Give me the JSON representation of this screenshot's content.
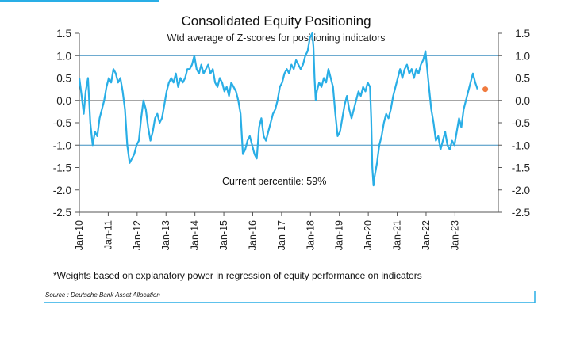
{
  "chart_data": {
    "type": "line",
    "title": "Consolidated Equity Positioning",
    "subtitle": "Wtd average of Z-scores for positioning indicators",
    "ylim": [
      -2.5,
      1.5
    ],
    "yticks": [
      1.5,
      1.0,
      0.5,
      0.0,
      -0.5,
      -1.0,
      -1.5,
      -2.0,
      -2.5
    ],
    "ytick_labels": [
      "1.5",
      "1.0",
      "0.5",
      "0.0",
      "-0.5",
      "-1.0",
      "-1.5",
      "-2.0",
      "-2.5"
    ],
    "xlim": [
      2010.0,
      2024.5
    ],
    "xtick_labels": [
      "Jan-10",
      "Jan-11",
      "Jan-12",
      "Jan-13",
      "Jan-14",
      "Jan-15",
      "Jan-16",
      "Jan-17",
      "Jan-18",
      "Jan-19",
      "Jan-20",
      "Jan-21",
      "Jan-22",
      "Jan-23"
    ],
    "xtick_values": [
      2010,
      2011,
      2012,
      2013,
      2014,
      2015,
      2016,
      2017,
      2018,
      2019,
      2020,
      2021,
      2022,
      2023
    ],
    "reference_lines": [
      1.0,
      0.0,
      -1.0
    ],
    "series": [
      {
        "name": "Consolidated Equity Positioning",
        "color": "#29aee6",
        "points": [
          [
            2010.0,
            0.5
          ],
          [
            2010.08,
            0.1
          ],
          [
            2010.15,
            -0.3
          ],
          [
            2010.22,
            0.2
          ],
          [
            2010.3,
            0.5
          ],
          [
            2010.38,
            -0.5
          ],
          [
            2010.46,
            -1.0
          ],
          [
            2010.54,
            -0.7
          ],
          [
            2010.62,
            -0.8
          ],
          [
            2010.7,
            -0.4
          ],
          [
            2010.78,
            -0.2
          ],
          [
            2010.86,
            0.0
          ],
          [
            2010.94,
            0.3
          ],
          [
            2011.02,
            0.5
          ],
          [
            2011.1,
            0.4
          ],
          [
            2011.18,
            0.7
          ],
          [
            2011.26,
            0.6
          ],
          [
            2011.34,
            0.4
          ],
          [
            2011.42,
            0.5
          ],
          [
            2011.5,
            0.2
          ],
          [
            2011.58,
            -0.2
          ],
          [
            2011.66,
            -1.0
          ],
          [
            2011.74,
            -1.4
          ],
          [
            2011.82,
            -1.3
          ],
          [
            2011.9,
            -1.2
          ],
          [
            2011.98,
            -1.0
          ],
          [
            2012.06,
            -0.9
          ],
          [
            2012.14,
            -0.4
          ],
          [
            2012.22,
            0.0
          ],
          [
            2012.3,
            -0.2
          ],
          [
            2012.38,
            -0.6
          ],
          [
            2012.46,
            -0.9
          ],
          [
            2012.54,
            -0.7
          ],
          [
            2012.62,
            -0.4
          ],
          [
            2012.7,
            -0.3
          ],
          [
            2012.78,
            -0.5
          ],
          [
            2012.86,
            -0.4
          ],
          [
            2012.94,
            -0.1
          ],
          [
            2013.02,
            0.2
          ],
          [
            2013.1,
            0.4
          ],
          [
            2013.18,
            0.5
          ],
          [
            2013.26,
            0.4
          ],
          [
            2013.34,
            0.6
          ],
          [
            2013.42,
            0.3
          ],
          [
            2013.5,
            0.5
          ],
          [
            2013.58,
            0.4
          ],
          [
            2013.66,
            0.5
          ],
          [
            2013.74,
            0.7
          ],
          [
            2013.82,
            0.7
          ],
          [
            2013.9,
            0.8
          ],
          [
            2013.98,
            1.0
          ],
          [
            2014.06,
            0.7
          ],
          [
            2014.14,
            0.6
          ],
          [
            2014.22,
            0.8
          ],
          [
            2014.3,
            0.6
          ],
          [
            2014.38,
            0.7
          ],
          [
            2014.46,
            0.8
          ],
          [
            2014.54,
            0.6
          ],
          [
            2014.62,
            0.7
          ],
          [
            2014.7,
            0.4
          ],
          [
            2014.78,
            0.3
          ],
          [
            2014.86,
            0.5
          ],
          [
            2014.94,
            0.4
          ],
          [
            2015.02,
            0.2
          ],
          [
            2015.1,
            0.3
          ],
          [
            2015.18,
            0.1
          ],
          [
            2015.26,
            0.4
          ],
          [
            2015.34,
            0.3
          ],
          [
            2015.42,
            0.2
          ],
          [
            2015.5,
            0.0
          ],
          [
            2015.58,
            -0.3
          ],
          [
            2015.66,
            -1.2
          ],
          [
            2015.74,
            -1.1
          ],
          [
            2015.82,
            -0.9
          ],
          [
            2015.9,
            -0.8
          ],
          [
            2015.98,
            -1.0
          ],
          [
            2016.06,
            -1.2
          ],
          [
            2016.14,
            -1.3
          ],
          [
            2016.22,
            -0.6
          ],
          [
            2016.3,
            -0.4
          ],
          [
            2016.38,
            -0.8
          ],
          [
            2016.46,
            -0.9
          ],
          [
            2016.54,
            -0.7
          ],
          [
            2016.62,
            -0.5
          ],
          [
            2016.7,
            -0.3
          ],
          [
            2016.78,
            -0.2
          ],
          [
            2016.86,
            0.0
          ],
          [
            2016.94,
            0.3
          ],
          [
            2017.02,
            0.4
          ],
          [
            2017.1,
            0.6
          ],
          [
            2017.18,
            0.7
          ],
          [
            2017.26,
            0.6
          ],
          [
            2017.34,
            0.8
          ],
          [
            2017.42,
            0.7
          ],
          [
            2017.5,
            0.9
          ],
          [
            2017.58,
            0.8
          ],
          [
            2017.66,
            0.7
          ],
          [
            2017.74,
            0.8
          ],
          [
            2017.82,
            1.0
          ],
          [
            2017.9,
            1.1
          ],
          [
            2017.98,
            1.4
          ],
          [
            2018.06,
            1.5
          ],
          [
            2018.1,
            1.2
          ],
          [
            2018.14,
            0.5
          ],
          [
            2018.18,
            0.0
          ],
          [
            2018.22,
            0.2
          ],
          [
            2018.3,
            0.4
          ],
          [
            2018.38,
            0.3
          ],
          [
            2018.46,
            0.5
          ],
          [
            2018.54,
            0.4
          ],
          [
            2018.62,
            0.7
          ],
          [
            2018.7,
            0.5
          ],
          [
            2018.78,
            0.3
          ],
          [
            2018.86,
            -0.3
          ],
          [
            2018.94,
            -0.8
          ],
          [
            2019.02,
            -0.7
          ],
          [
            2019.1,
            -0.4
          ],
          [
            2019.18,
            -0.1
          ],
          [
            2019.26,
            0.1
          ],
          [
            2019.34,
            -0.2
          ],
          [
            2019.42,
            -0.4
          ],
          [
            2019.5,
            -0.2
          ],
          [
            2019.58,
            0.0
          ],
          [
            2019.66,
            0.2
          ],
          [
            2019.74,
            0.1
          ],
          [
            2019.82,
            0.3
          ],
          [
            2019.9,
            0.2
          ],
          [
            2019.98,
            0.4
          ],
          [
            2020.06,
            0.3
          ],
          [
            2020.1,
            -0.4
          ],
          [
            2020.14,
            -1.5
          ],
          [
            2020.18,
            -1.9
          ],
          [
            2020.22,
            -1.7
          ],
          [
            2020.3,
            -1.4
          ],
          [
            2020.38,
            -1.0
          ],
          [
            2020.46,
            -0.8
          ],
          [
            2020.54,
            -0.5
          ],
          [
            2020.62,
            -0.3
          ],
          [
            2020.7,
            -0.4
          ],
          [
            2020.78,
            -0.2
          ],
          [
            2020.86,
            0.1
          ],
          [
            2020.94,
            0.3
          ],
          [
            2021.02,
            0.5
          ],
          [
            2021.1,
            0.7
          ],
          [
            2021.18,
            0.5
          ],
          [
            2021.26,
            0.7
          ],
          [
            2021.34,
            0.8
          ],
          [
            2021.42,
            0.6
          ],
          [
            2021.5,
            0.7
          ],
          [
            2021.58,
            0.5
          ],
          [
            2021.66,
            0.7
          ],
          [
            2021.74,
            0.6
          ],
          [
            2021.82,
            0.8
          ],
          [
            2021.9,
            0.9
          ],
          [
            2021.98,
            1.1
          ],
          [
            2022.04,
            0.7
          ],
          [
            2022.1,
            0.3
          ],
          [
            2022.18,
            -0.2
          ],
          [
            2022.26,
            -0.5
          ],
          [
            2022.34,
            -0.9
          ],
          [
            2022.42,
            -0.8
          ],
          [
            2022.5,
            -1.1
          ],
          [
            2022.58,
            -0.9
          ],
          [
            2022.66,
            -0.7
          ],
          [
            2022.74,
            -1.0
          ],
          [
            2022.82,
            -1.1
          ],
          [
            2022.9,
            -0.9
          ],
          [
            2022.98,
            -1.0
          ],
          [
            2023.06,
            -0.7
          ],
          [
            2023.14,
            -0.4
          ],
          [
            2023.22,
            -0.6
          ],
          [
            2023.3,
            -0.2
          ],
          [
            2023.38,
            0.0
          ],
          [
            2023.46,
            0.2
          ],
          [
            2023.54,
            0.4
          ],
          [
            2023.62,
            0.6
          ],
          [
            2023.7,
            0.4
          ],
          [
            2023.78,
            0.25
          ]
        ]
      }
    ],
    "last_point": {
      "x": 2024.05,
      "y": 0.25,
      "color": "#f07b3f"
    },
    "annotation": "Current percentile: 59%",
    "footnote": "*Weights based on explanatory power in regression of equity performance on indicators",
    "source": "Source : Deutsche Bank Asset Allocation"
  }
}
